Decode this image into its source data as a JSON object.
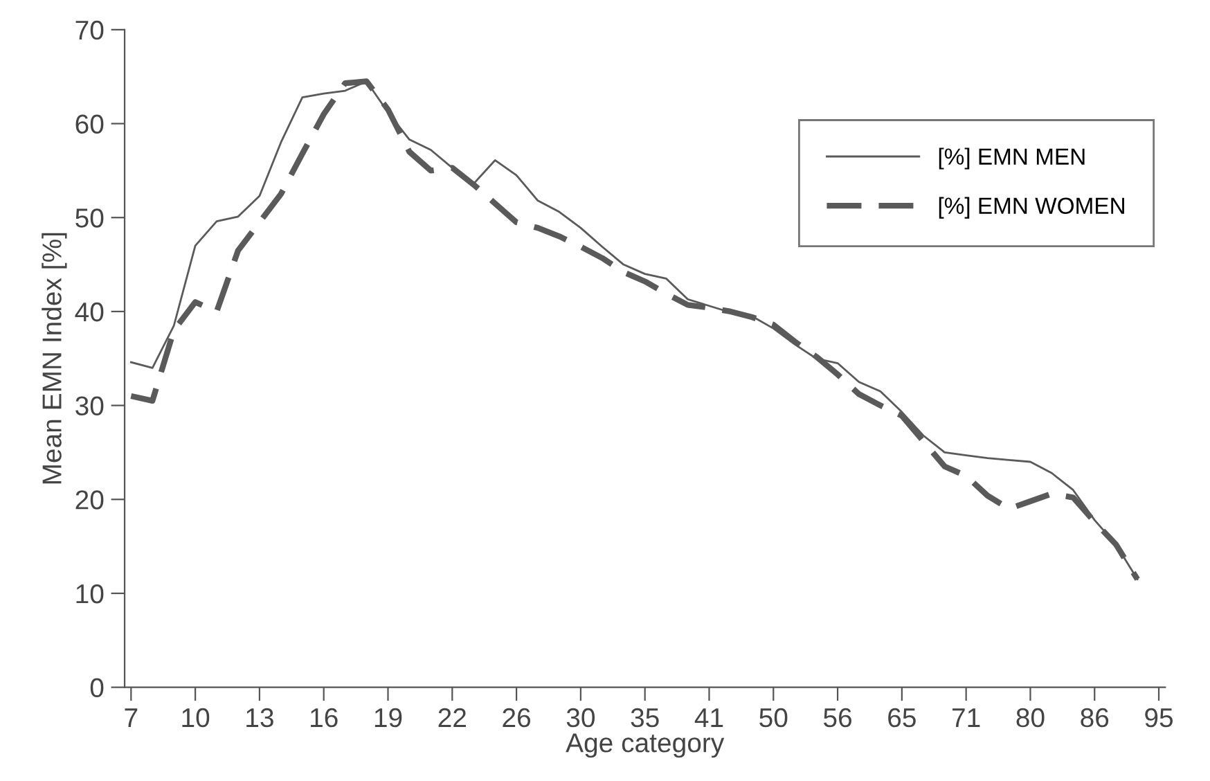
{
  "chart_data": {
    "type": "line",
    "xlabel": "Age category",
    "ylabel": "Mean EMN Index [%]",
    "categories": [
      "7",
      null,
      null,
      "10",
      null,
      null,
      "13",
      null,
      null,
      "16",
      null,
      null,
      "19",
      null,
      null,
      "22",
      null,
      null,
      "26",
      null,
      null,
      "30",
      null,
      null,
      "35",
      null,
      null,
      "41",
      null,
      null,
      "50",
      null,
      null,
      "56",
      null,
      null,
      "65",
      null,
      null,
      "71",
      null,
      null,
      "80",
      null,
      null,
      "86",
      null,
      null,
      "95"
    ],
    "series": [
      {
        "name": "[%] EMN MEN",
        "color": "#5a5a5a",
        "line_style": "solid",
        "values": [
          34.6,
          34,
          38.5,
          47,
          49.6,
          50.1,
          52.3,
          58,
          62.8,
          63.2,
          63.5,
          64.5,
          61.2,
          58.3,
          57.2,
          55.3,
          53.6,
          56.1,
          54.5,
          51.8,
          50.6,
          48.9,
          46.9,
          45,
          44,
          43.5,
          41.3,
          40.6,
          39.9,
          39.5,
          38.2,
          36.5,
          35,
          34.5,
          32.5,
          31.5,
          29.3,
          26.8,
          25,
          24.7,
          24.4,
          24.2,
          24,
          22.8,
          21,
          17.8,
          15.2,
          11.5,
          null
        ]
      },
      {
        "name": "[%] EMN WOMEN",
        "color": "#5a5a5a",
        "line_style": "dashed",
        "values": [
          31,
          30.5,
          38,
          41,
          40,
          46.5,
          49.5,
          52.5,
          56.8,
          61,
          64.3,
          64.5,
          61.5,
          57,
          55,
          55.3,
          53.5,
          51.5,
          49.5,
          48.9,
          48,
          46.9,
          45.7,
          44.2,
          43.2,
          41.9,
          40.7,
          40.4,
          40,
          39.4,
          38.6,
          36.8,
          35.2,
          33.3,
          31.2,
          30,
          28.9,
          26.2,
          23.5,
          22.5,
          20.4,
          19,
          19.8,
          20.6,
          20.2,
          17.6,
          15.2,
          11.5,
          null
        ]
      }
    ],
    "ylim": [
      0,
      70
    ],
    "yticks": [
      0,
      10,
      20,
      30,
      40,
      50,
      60,
      70
    ],
    "grid": false,
    "legend": "top right",
    "marker": "none"
  }
}
